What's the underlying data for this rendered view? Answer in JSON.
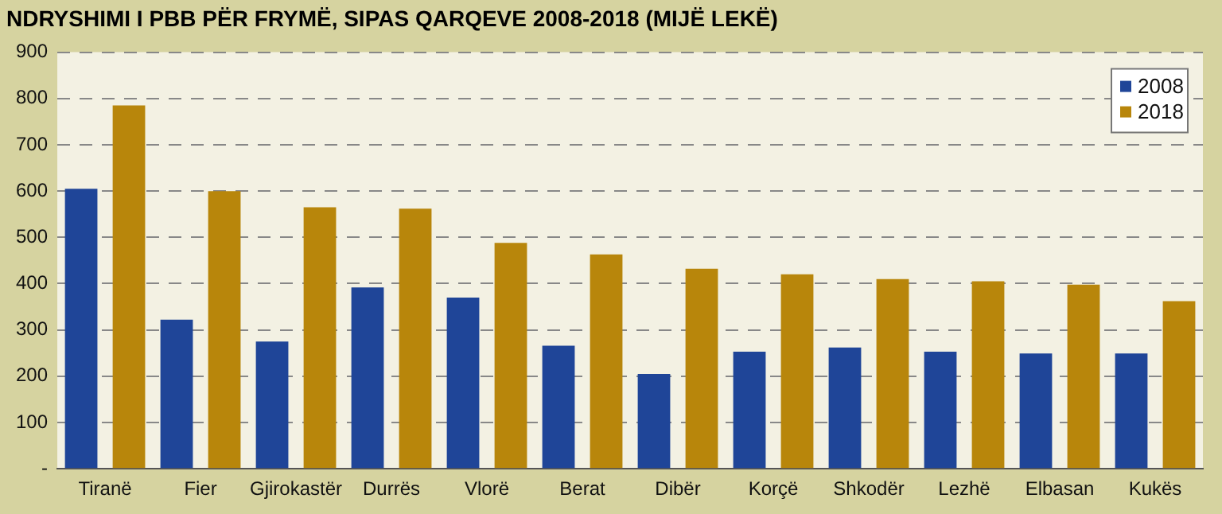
{
  "chart_data": {
    "type": "bar",
    "title": "NDRYSHIMI I PBB PËR FRYMË, SIPAS QARQEVE 2008-2018 (MIJË LEKË)",
    "categories": [
      "Tiranë",
      "Fier",
      "Gjirokastër",
      "Durrës",
      "Vlorë",
      "Berat",
      "Dibër",
      "Korçë",
      "Shkodër",
      "Lezhë",
      "Elbasan",
      "Kukës"
    ],
    "series": [
      {
        "name": "2008",
        "color": "#1f4598",
        "values": [
          605,
          322,
          275,
          392,
          370,
          266,
          205,
          253,
          262,
          253,
          249,
          249
        ]
      },
      {
        "name": "2018",
        "color": "#b8860b",
        "values": [
          785,
          600,
          565,
          562,
          488,
          463,
          432,
          420,
          410,
          405,
          398,
          362
        ]
      }
    ],
    "ylim": [
      0,
      900
    ],
    "yticks": [
      {
        "value": 0,
        "label": "-"
      },
      100,
      200,
      300,
      400,
      500,
      600,
      700,
      800,
      900
    ],
    "grid": "y",
    "legend": "top right"
  }
}
